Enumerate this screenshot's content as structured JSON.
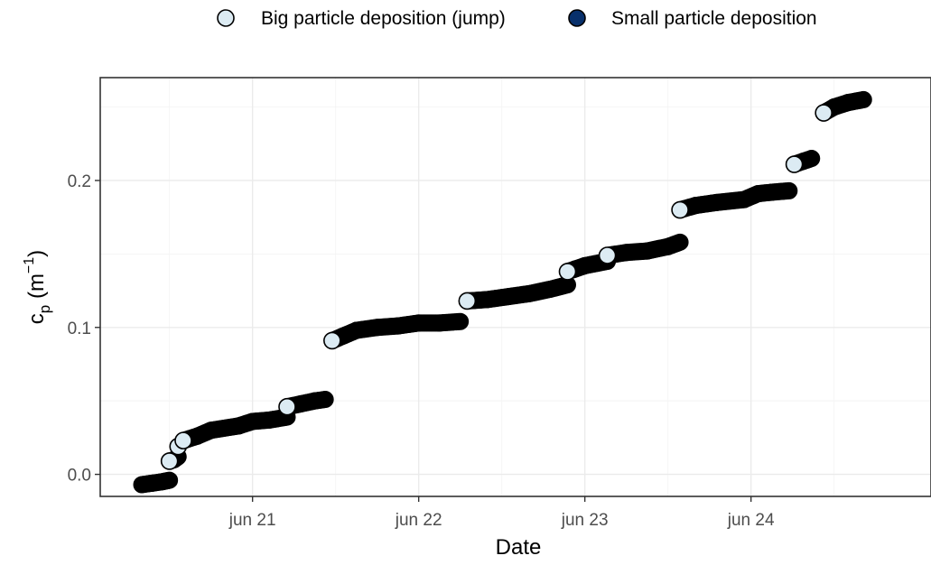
{
  "colors": {
    "big_fill": "#dcebf3",
    "small_fill": "#08306b",
    "point_stroke": "#000000",
    "small_rendered": "#000000",
    "panel_border": "#333333"
  },
  "chart_data": {
    "type": "scatter",
    "title": "",
    "xlabel": "Date",
    "ylabel": {
      "main": "c",
      "sub": "p",
      "unit_open": " (m",
      "unit_sup": "−1",
      "unit_close": ")"
    },
    "x_ticks": [
      {
        "date": "2023-06-21",
        "label": "jun 21"
      },
      {
        "date": "2023-06-22",
        "label": "jun 22"
      },
      {
        "date": "2023-06-23",
        "label": "jun 23"
      },
      {
        "date": "2023-06-24",
        "label": "jun 24"
      }
    ],
    "y_ticks": [
      {
        "value": 0.0,
        "label": "0.0"
      },
      {
        "value": 0.1,
        "label": "0.1"
      },
      {
        "value": 0.2,
        "label": "0.2"
      }
    ],
    "xlim": [
      "2023-06-20 02:00",
      "2023-06-25 02:00"
    ],
    "ylim": [
      -0.015,
      0.27
    ],
    "grid": true,
    "legend_position": "top",
    "series": [
      {
        "name": "Big particle deposition (jump)",
        "points": [
          [
            "2023-06-20 12:00",
            0.009
          ],
          [
            "2023-06-20 13:15",
            0.019
          ],
          [
            "2023-06-20 14:00",
            0.023
          ],
          [
            "2023-06-21 05:00",
            0.046
          ],
          [
            "2023-06-21 11:30",
            0.091
          ],
          [
            "2023-06-22 07:00",
            0.118
          ],
          [
            "2023-06-22 21:30",
            0.138
          ],
          [
            "2023-06-23 03:15",
            0.149
          ],
          [
            "2023-06-23 13:45",
            0.18
          ],
          [
            "2023-06-24 06:15",
            0.211
          ],
          [
            "2023-06-24 10:30",
            0.246
          ]
        ]
      },
      {
        "name": "Small particle deposition",
        "segments": [
          [
            [
              "2023-06-20 08:00",
              -0.007
            ],
            [
              "2023-06-20 09:30",
              -0.006
            ],
            [
              "2023-06-20 11:00",
              -0.005
            ],
            [
              "2023-06-20 12:00",
              -0.004
            ]
          ],
          [
            [
              "2023-06-20 12:00",
              0.009
            ],
            [
              "2023-06-20 12:40",
              0.01
            ],
            [
              "2023-06-20 13:15",
              0.012
            ]
          ],
          [
            [
              "2023-06-20 14:00",
              0.023
            ],
            [
              "2023-06-20 16:00",
              0.026
            ],
            [
              "2023-06-20 18:00",
              0.03
            ],
            [
              "2023-06-20 22:00",
              0.033
            ],
            [
              "2023-06-21 00:00",
              0.036
            ],
            [
              "2023-06-21 02:30",
              0.037
            ],
            [
              "2023-06-21 05:00",
              0.039
            ]
          ],
          [
            [
              "2023-06-21 05:00",
              0.046
            ],
            [
              "2023-06-21 07:00",
              0.048
            ],
            [
              "2023-06-21 09:00",
              0.05
            ],
            [
              "2023-06-21 10:30",
              0.051
            ]
          ],
          [
            [
              "2023-06-21 11:30",
              0.091
            ],
            [
              "2023-06-21 13:00",
              0.094
            ],
            [
              "2023-06-21 15:00",
              0.098
            ],
            [
              "2023-06-21 18:00",
              0.1
            ],
            [
              "2023-06-21 21:00",
              0.101
            ],
            [
              "2023-06-22 00:00",
              0.103
            ],
            [
              "2023-06-22 03:00",
              0.103
            ],
            [
              "2023-06-22 06:00",
              0.104
            ]
          ],
          [
            [
              "2023-06-22 07:00",
              0.118
            ],
            [
              "2023-06-22 10:00",
              0.119
            ],
            [
              "2023-06-22 13:00",
              0.121
            ],
            [
              "2023-06-22 16:00",
              0.123
            ],
            [
              "2023-06-22 19:00",
              0.126
            ],
            [
              "2023-06-22 21:30",
              0.129
            ]
          ],
          [
            [
              "2023-06-22 21:30",
              0.138
            ],
            [
              "2023-06-23 00:00",
              0.142
            ],
            [
              "2023-06-23 03:15",
              0.145
            ]
          ],
          [
            [
              "2023-06-23 03:15",
              0.149
            ],
            [
              "2023-06-23 06:00",
              0.151
            ],
            [
              "2023-06-23 09:00",
              0.152
            ],
            [
              "2023-06-23 12:00",
              0.155
            ],
            [
              "2023-06-23 13:45",
              0.158
            ]
          ],
          [
            [
              "2023-06-23 13:45",
              0.18
            ],
            [
              "2023-06-23 16:00",
              0.183
            ],
            [
              "2023-06-23 19:00",
              0.185
            ],
            [
              "2023-06-23 23:00",
              0.187
            ],
            [
              "2023-06-24 01:00",
              0.191
            ],
            [
              "2023-06-24 03:00",
              0.192
            ],
            [
              "2023-06-24 05:30",
              0.193
            ]
          ],
          [
            [
              "2023-06-24 06:15",
              0.211
            ],
            [
              "2023-06-24 07:30",
              0.213
            ],
            [
              "2023-06-24 08:45",
              0.215
            ]
          ],
          [
            [
              "2023-06-24 10:30",
              0.246
            ],
            [
              "2023-06-24 12:00",
              0.25
            ],
            [
              "2023-06-24 14:00",
              0.253
            ],
            [
              "2023-06-24 16:15",
              0.255
            ]
          ]
        ]
      }
    ]
  }
}
